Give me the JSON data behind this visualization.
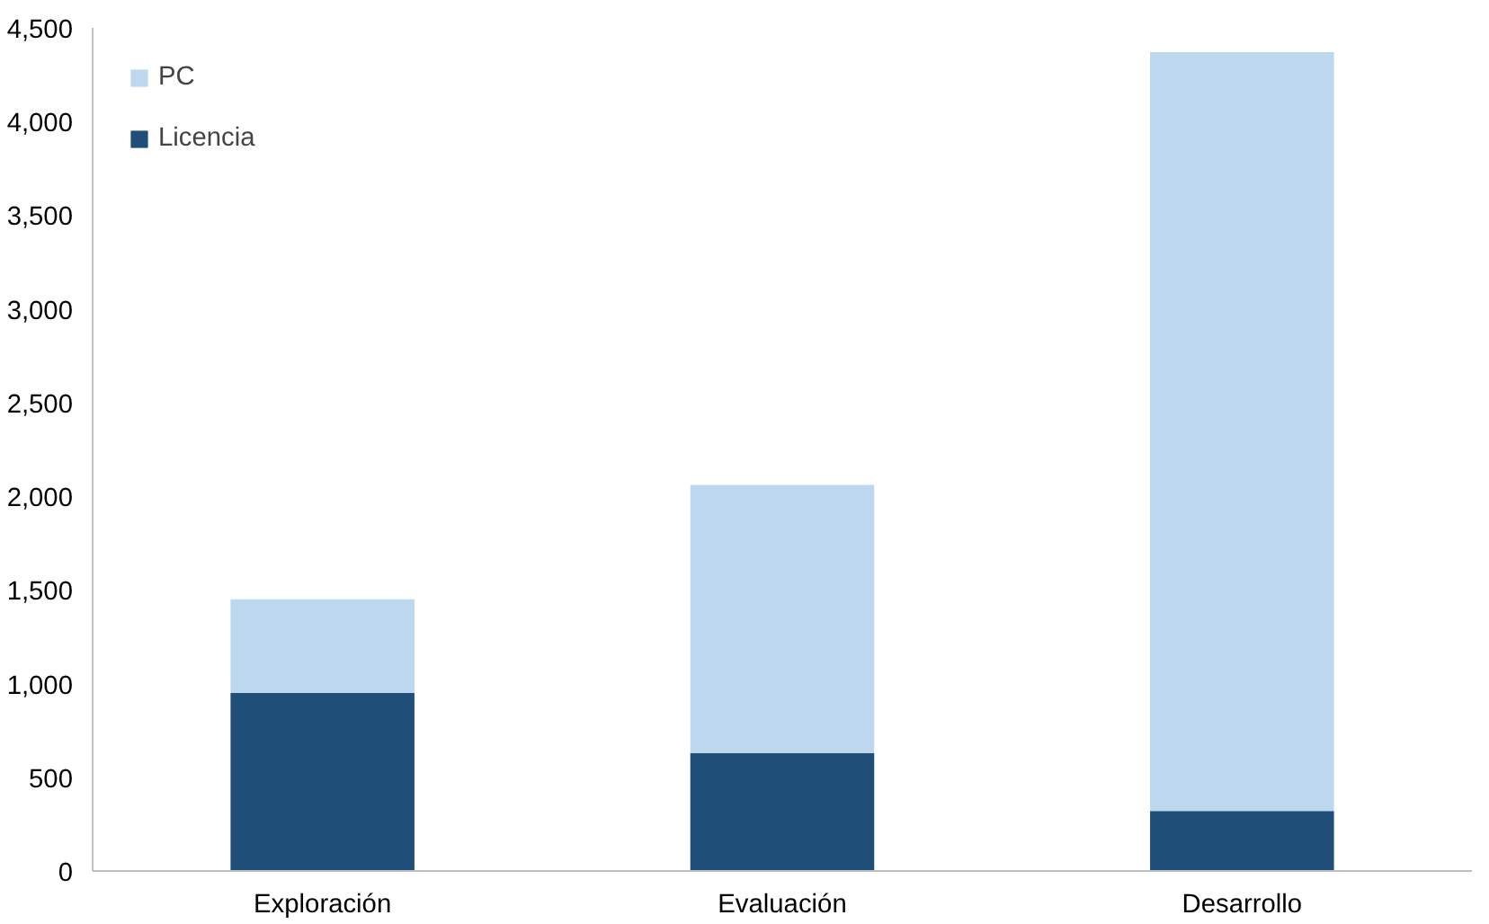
{
  "chart_data": {
    "type": "bar",
    "stacked": true,
    "categories": [
      "Exploración",
      "Evaluación",
      "Desarrollo"
    ],
    "series": [
      {
        "name": "Licencia",
        "color": "#1f4e79",
        "values": [
          950,
          630,
          320
        ]
      },
      {
        "name": "PC",
        "color": "#bdd7ee",
        "values": [
          500,
          1430,
          4050
        ]
      }
    ],
    "ylim": [
      0,
      4500
    ],
    "yticks": [
      {
        "value": 0,
        "label": "0"
      },
      {
        "value": 500,
        "label": "500"
      },
      {
        "value": 1000,
        "label": "1,000"
      },
      {
        "value": 1500,
        "label": "1,500"
      },
      {
        "value": 2000,
        "label": "2,000"
      },
      {
        "value": 2500,
        "label": "2,500"
      },
      {
        "value": 3000,
        "label": "3,000"
      },
      {
        "value": 3500,
        "label": "3,500"
      },
      {
        "value": 4000,
        "label": "4,000"
      },
      {
        "value": 4500,
        "label": "4,500"
      }
    ],
    "grid": false,
    "legend": "top left"
  }
}
